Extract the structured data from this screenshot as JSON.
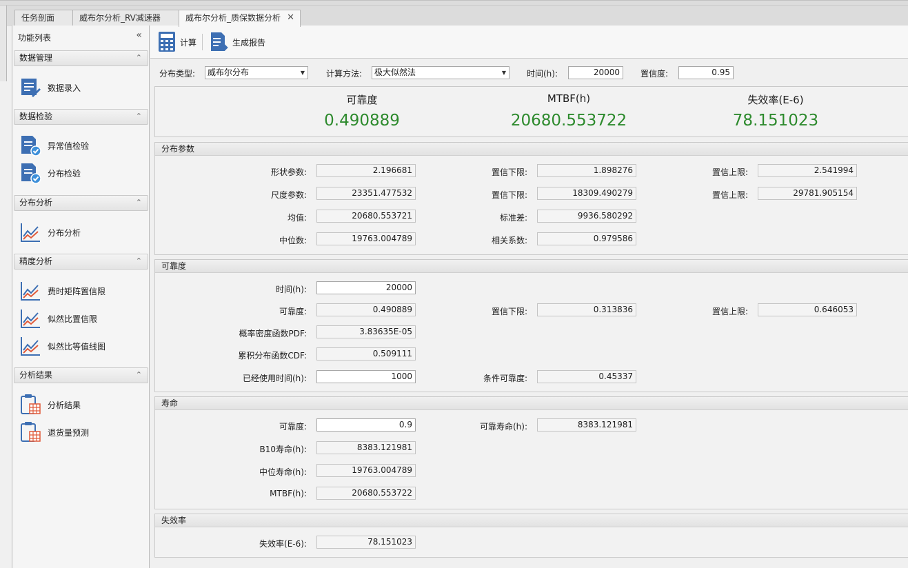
{
  "tabs": [
    {
      "label": "任务剖面"
    },
    {
      "label": "威布尔分析_RV减速器"
    },
    {
      "label": "威布尔分析_质保数据分析",
      "close": "✕"
    }
  ],
  "sidebar": {
    "title": "功能列表",
    "collapse": "«",
    "groups": [
      {
        "title": "数据管理",
        "items": [
          {
            "label": "数据录入",
            "icon": "data-entry-icon"
          }
        ]
      },
      {
        "title": "数据检验",
        "items": [
          {
            "label": "异常值检验",
            "icon": "check-doc-icon"
          },
          {
            "label": "分布检验",
            "icon": "check-doc-icon"
          }
        ]
      },
      {
        "title": "分布分析",
        "items": [
          {
            "label": "分布分析",
            "icon": "line-chart-icon"
          }
        ]
      },
      {
        "title": "精度分析",
        "items": [
          {
            "label": "费时矩阵置信限",
            "icon": "line-chart-icon"
          },
          {
            "label": "似然比置信限",
            "icon": "line-chart-icon"
          },
          {
            "label": "似然比等值线图",
            "icon": "line-chart-icon"
          }
        ]
      },
      {
        "title": "分析结果",
        "items": [
          {
            "label": "分析结果",
            "icon": "clipboard-table-icon"
          },
          {
            "label": "退货量预测",
            "icon": "clipboard-table-icon"
          }
        ]
      }
    ]
  },
  "toolbar": {
    "calc_label": "计算",
    "report_label": "生成报告"
  },
  "params": {
    "dist_type_label": "分布类型:",
    "dist_type_value": "威布尔分布",
    "method_label": "计算方法:",
    "method_value": "极大似然法",
    "time_label": "时间(h):",
    "time_value": "20000",
    "conf_label": "置信度:",
    "conf_value": "0.95"
  },
  "summary": {
    "rel_label": "可靠度",
    "rel_value": "0.490889",
    "mtbf_label": "MTBF(h)",
    "mtbf_value": "20680.553722",
    "fail_label": "失效率(E-6)",
    "fail_value": "78.151023",
    "value_color": "#2d8a2d"
  },
  "dist_params": {
    "title": "分布参数",
    "shape_label": "形状参数:",
    "shape_value": "2.196681",
    "shape_lower_label": "置信下限:",
    "shape_lower_value": "1.898276",
    "shape_upper_label": "置信上限:",
    "shape_upper_value": "2.541994",
    "scale_label": "尺度参数:",
    "scale_value": "23351.477532",
    "scale_lower_label": "置信下限:",
    "scale_lower_value": "18309.490279",
    "scale_upper_label": "置信上限:",
    "scale_upper_value": "29781.905154",
    "mean_label": "均值:",
    "mean_value": "20680.553721",
    "std_label": "标准差:",
    "std_value": "9936.580292",
    "median_label": "中位数:",
    "median_value": "19763.004789",
    "corr_label": "相关系数:",
    "corr_value": "0.979586"
  },
  "reliability": {
    "title": "可靠度",
    "time_label": "时间(h):",
    "time_value": "20000",
    "rel_label": "可靠度:",
    "rel_value": "0.490889",
    "lower_label": "置信下限:",
    "lower_value": "0.313836",
    "upper_label": "置信上限:",
    "upper_value": "0.646053",
    "pdf_label": "概率密度函数PDF:",
    "pdf_value": "3.83635E-05",
    "cdf_label": "累积分布函数CDF:",
    "cdf_value": "0.509111",
    "used_label": "已经使用时间(h):",
    "used_value": "1000",
    "cond_label": "条件可靠度:",
    "cond_value": "0.45337"
  },
  "life": {
    "title": "寿命",
    "rel_label": "可靠度:",
    "rel_value": "0.9",
    "rel_life_label": "可靠寿命(h):",
    "rel_life_value": "8383.121981",
    "b10_label": "B10寿命(h):",
    "b10_value": "8383.121981",
    "median_label": "中位寿命(h):",
    "median_value": "19763.004789",
    "mtbf_label": "MTBF(h):",
    "mtbf_value": "20680.553722"
  },
  "failure": {
    "title": "失效率",
    "rate_label": "失效率(E-6):",
    "rate_value": "78.151023"
  }
}
